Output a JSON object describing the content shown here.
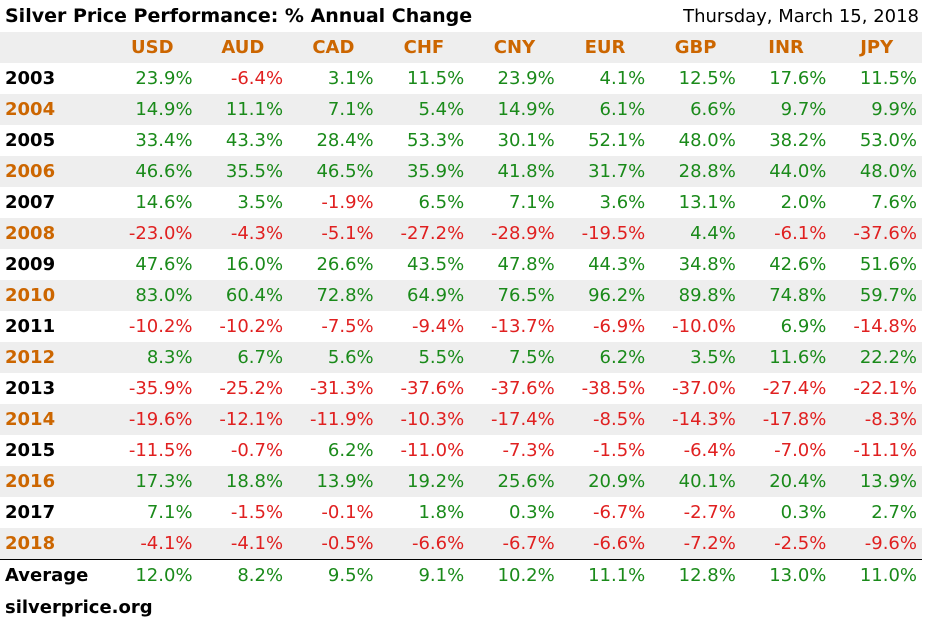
{
  "title": "Silver Price Performance: % Annual Change",
  "date": "Thursday, March 15, 2018",
  "footer": "silverprice.org",
  "colors": {
    "header": "#cc6600",
    "positive": "#1a8a1a",
    "negative": "#e02020",
    "stripe": "#eeeeee"
  },
  "chart_data": {
    "type": "table",
    "title": "Silver Price Performance: % Annual Change",
    "columns": [
      "USD",
      "AUD",
      "CAD",
      "CHF",
      "CNY",
      "EUR",
      "GBP",
      "INR",
      "JPY"
    ],
    "rows": [
      {
        "year": "2003",
        "values": [
          "23.9%",
          "-6.4%",
          "3.1%",
          "11.5%",
          "23.9%",
          "4.1%",
          "12.5%",
          "17.6%",
          "11.5%"
        ]
      },
      {
        "year": "2004",
        "values": [
          "14.9%",
          "11.1%",
          "7.1%",
          "5.4%",
          "14.9%",
          "6.1%",
          "6.6%",
          "9.7%",
          "9.9%"
        ]
      },
      {
        "year": "2005",
        "values": [
          "33.4%",
          "43.3%",
          "28.4%",
          "53.3%",
          "30.1%",
          "52.1%",
          "48.0%",
          "38.2%",
          "53.0%"
        ]
      },
      {
        "year": "2006",
        "values": [
          "46.6%",
          "35.5%",
          "46.5%",
          "35.9%",
          "41.8%",
          "31.7%",
          "28.8%",
          "44.0%",
          "48.0%"
        ]
      },
      {
        "year": "2007",
        "values": [
          "14.6%",
          "3.5%",
          "-1.9%",
          "6.5%",
          "7.1%",
          "3.6%",
          "13.1%",
          "2.0%",
          "7.6%"
        ]
      },
      {
        "year": "2008",
        "values": [
          "-23.0%",
          "-4.3%",
          "-5.1%",
          "-27.2%",
          "-28.9%",
          "-19.5%",
          "4.4%",
          "-6.1%",
          "-37.6%"
        ]
      },
      {
        "year": "2009",
        "values": [
          "47.6%",
          "16.0%",
          "26.6%",
          "43.5%",
          "47.8%",
          "44.3%",
          "34.8%",
          "42.6%",
          "51.6%"
        ]
      },
      {
        "year": "2010",
        "values": [
          "83.0%",
          "60.4%",
          "72.8%",
          "64.9%",
          "76.5%",
          "96.2%",
          "89.8%",
          "74.8%",
          "59.7%"
        ]
      },
      {
        "year": "2011",
        "values": [
          "-10.2%",
          "-10.2%",
          "-7.5%",
          "-9.4%",
          "-13.7%",
          "-6.9%",
          "-10.0%",
          "6.9%",
          "-14.8%"
        ]
      },
      {
        "year": "2012",
        "values": [
          "8.3%",
          "6.7%",
          "5.6%",
          "5.5%",
          "7.5%",
          "6.2%",
          "3.5%",
          "11.6%",
          "22.2%"
        ]
      },
      {
        "year": "2013",
        "values": [
          "-35.9%",
          "-25.2%",
          "-31.3%",
          "-37.6%",
          "-37.6%",
          "-38.5%",
          "-37.0%",
          "-27.4%",
          "-22.1%"
        ]
      },
      {
        "year": "2014",
        "values": [
          "-19.6%",
          "-12.1%",
          "-11.9%",
          "-10.3%",
          "-17.4%",
          "-8.5%",
          "-14.3%",
          "-17.8%",
          "-8.3%"
        ]
      },
      {
        "year": "2015",
        "values": [
          "-11.5%",
          "-0.7%",
          "6.2%",
          "-11.0%",
          "-7.3%",
          "-1.5%",
          "-6.4%",
          "-7.0%",
          "-11.1%"
        ]
      },
      {
        "year": "2016",
        "values": [
          "17.3%",
          "18.8%",
          "13.9%",
          "19.2%",
          "25.6%",
          "20.9%",
          "40.1%",
          "20.4%",
          "13.9%"
        ]
      },
      {
        "year": "2017",
        "values": [
          "7.1%",
          "-1.5%",
          "-0.1%",
          "1.8%",
          "0.3%",
          "-6.7%",
          "-2.7%",
          "0.3%",
          "2.7%"
        ]
      },
      {
        "year": "2018",
        "values": [
          "-4.1%",
          "-4.1%",
          "-0.5%",
          "-6.6%",
          "-6.7%",
          "-6.6%",
          "-7.2%",
          "-2.5%",
          "-9.6%"
        ]
      }
    ],
    "average": {
      "label": "Average",
      "values": [
        "12.0%",
        "8.2%",
        "9.5%",
        "9.1%",
        "10.2%",
        "11.1%",
        "12.8%",
        "13.0%",
        "11.0%"
      ]
    }
  }
}
